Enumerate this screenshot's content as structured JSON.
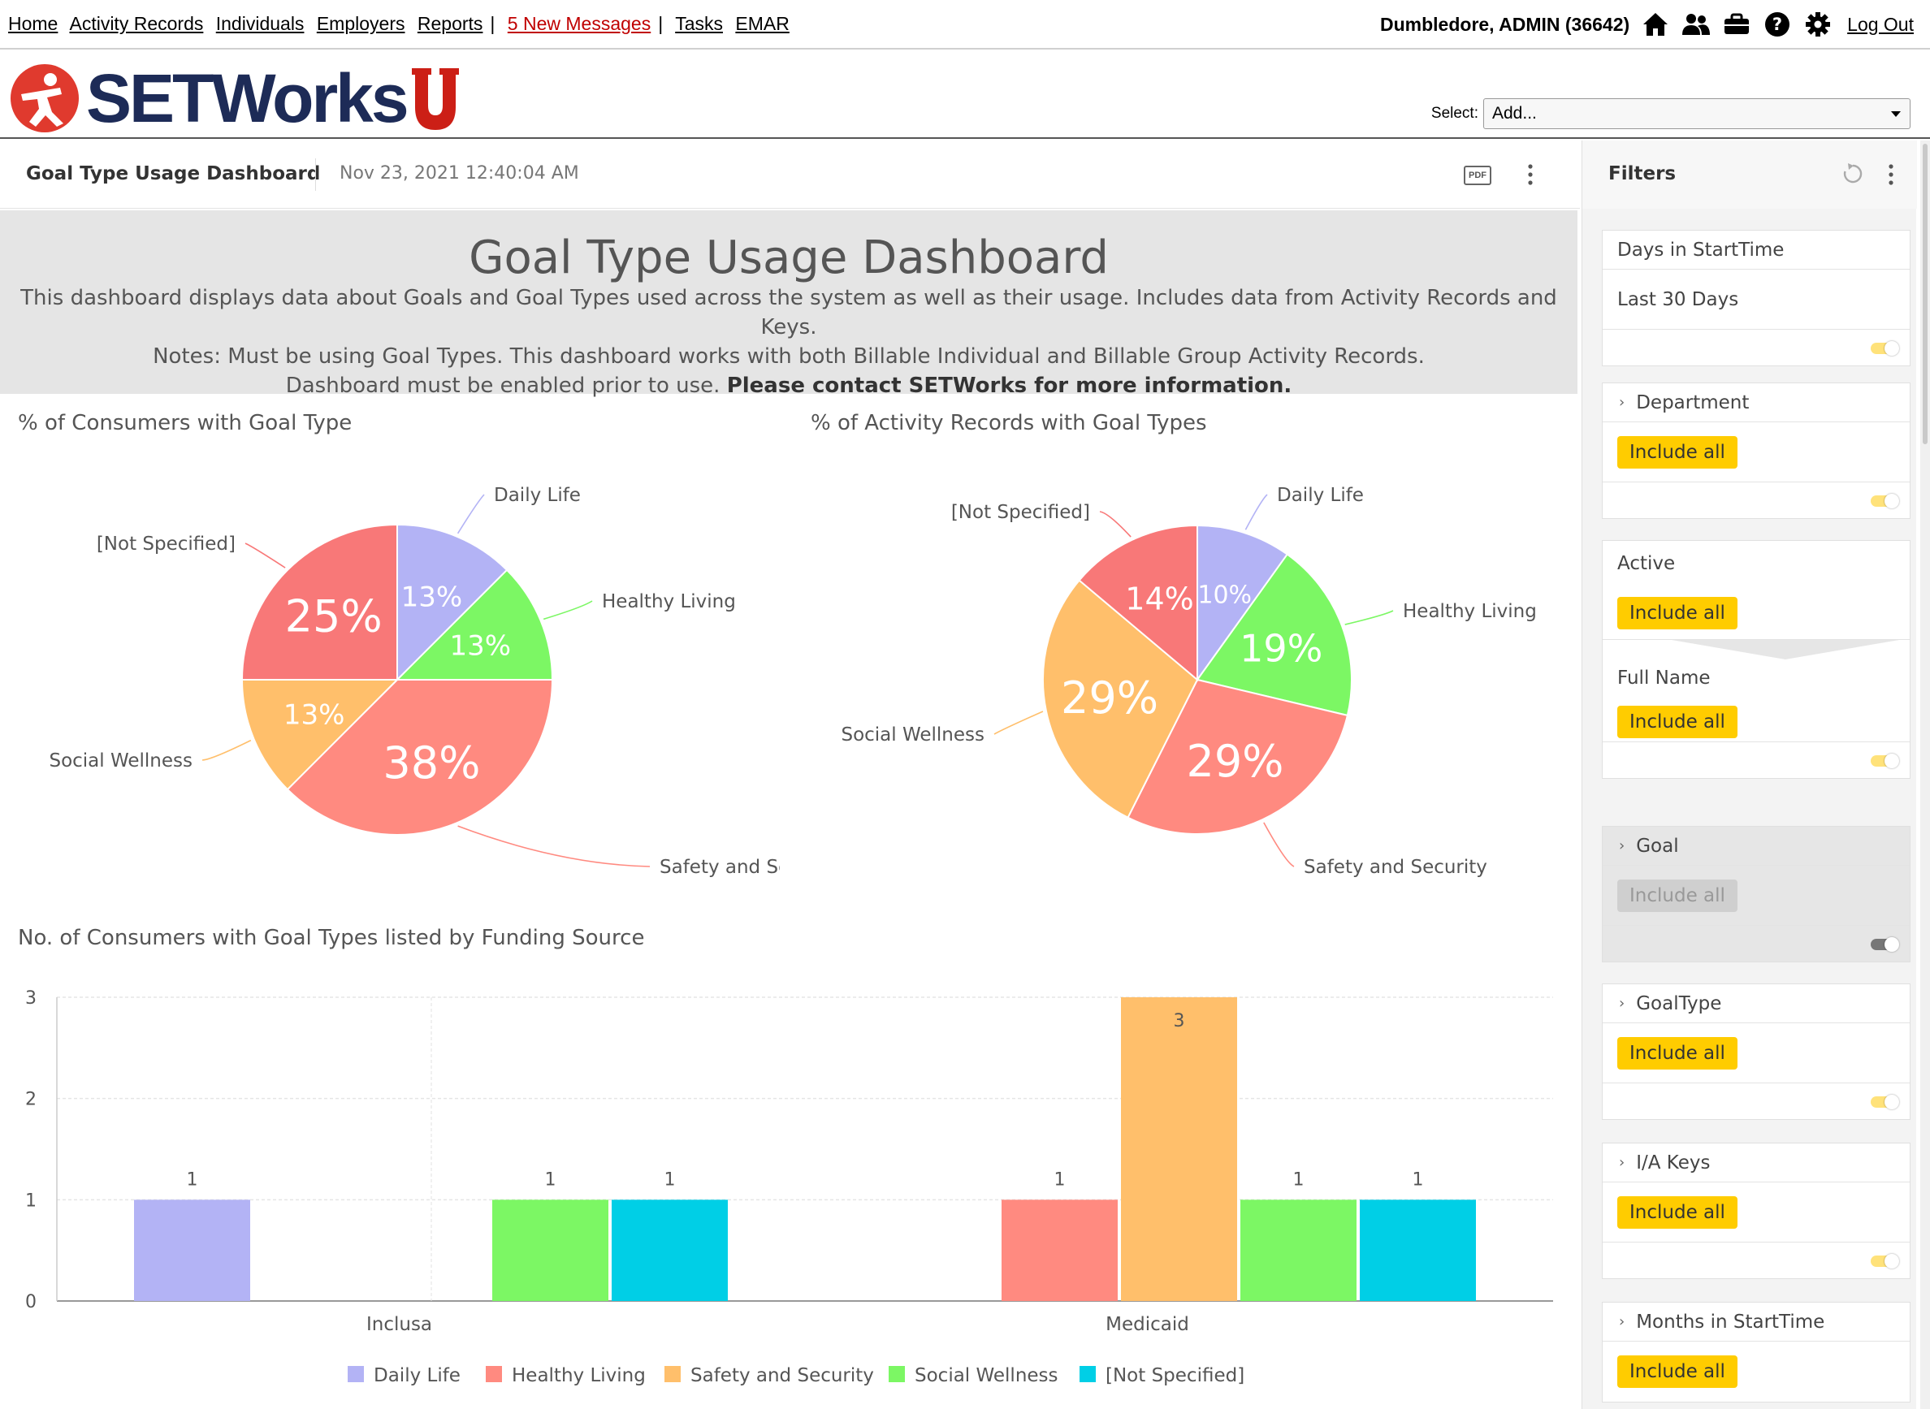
{
  "topnav": {
    "links": [
      "Home",
      "Activity Records",
      "Individuals",
      "Employers",
      "Reports"
    ],
    "messages": "5 New Messages",
    "links2": [
      "Tasks",
      "EMAR"
    ],
    "user": "Dumbledore, ADMIN  (36642)",
    "logout": "Log Out"
  },
  "logo": {
    "text": "SETWorks"
  },
  "select": {
    "label": "Select:",
    "value": "Add..."
  },
  "dashboard": {
    "title": "Goal Type Usage Dashboard",
    "timestamp": "Nov 23, 2021 12:40:04 AM",
    "pdf_label": "PDF"
  },
  "banner": {
    "heading": "Goal Type Usage Dashboard",
    "line1": "This dashboard displays data about Goals and Goal Types used across the system as well as their usage. Includes data from Activity Records and Keys.",
    "line2": "Notes: Must be using Goal Types. This dashboard works with both Billable Individual and Billable Group Activity Records.",
    "line3a": "Dashboard must be enabled prior to use.",
    "line3b": "Please contact SETWorks for more information."
  },
  "colors": {
    "daily_life": "#b3b3f5",
    "healthy_living": "#7cf764",
    "safety_security": "#ff8a80",
    "social_wellness": "#ffbf6b",
    "not_specified": "#f87878",
    "bar_healthy_living": "#ff8a80",
    "bar_safety": "#ffbf6b",
    "bar_social": "#7cf764",
    "bar_not_specified": "#00cfe6"
  },
  "chart_data": [
    {
      "type": "pie",
      "title": "% of Consumers with Goal Type",
      "slices": [
        {
          "label": "Daily Life",
          "value": 12.5,
          "display": "13%",
          "color": "#b3b3f5"
        },
        {
          "label": "Healthy Living",
          "value": 12.5,
          "display": "13%",
          "color": "#7cf764"
        },
        {
          "label": "Safety and Security",
          "value": 37.5,
          "display": "38%",
          "color": "#ff8a80"
        },
        {
          "label": "Social Wellness",
          "value": 12.5,
          "display": "13%",
          "color": "#ffbf6b"
        },
        {
          "label": "[Not Specified]",
          "value": 25,
          "display": "25%",
          "color": "#f87878"
        }
      ]
    },
    {
      "type": "pie",
      "title": "% of Activity Records with Goal Types",
      "slices": [
        {
          "label": "Daily Life",
          "value": 10,
          "display": "10%",
          "color": "#b3b3f5"
        },
        {
          "label": "Healthy Living",
          "value": 19,
          "display": "19%",
          "color": "#7cf764"
        },
        {
          "label": "Safety and Security",
          "value": 29,
          "display": "29%",
          "color": "#ff8a80"
        },
        {
          "label": "Social Wellness",
          "value": 29,
          "display": "29%",
          "color": "#ffbf6b"
        },
        {
          "label": "[Not Specified]",
          "value": 14,
          "display": "14%",
          "color": "#f87878"
        }
      ]
    },
    {
      "type": "bar",
      "title": "No. of Consumers with Goal Types listed by Funding Source",
      "categories": [
        "Inclusa",
        "Medicaid"
      ],
      "ylim": [
        0,
        3
      ],
      "yticks": [
        "0",
        "1",
        "2",
        "3"
      ],
      "series": [
        {
          "name": "Daily Life",
          "values": [
            1,
            0
          ],
          "color": "#b3b3f5"
        },
        {
          "name": "Healthy Living",
          "values": [
            0,
            1
          ],
          "color": "#ff8a80"
        },
        {
          "name": "Safety and Security",
          "values": [
            0,
            3
          ],
          "color": "#ffbf6b"
        },
        {
          "name": "Social Wellness",
          "values": [
            1,
            1
          ],
          "color": "#7cf764"
        },
        {
          "name": "[Not Specified]",
          "values": [
            1,
            1
          ],
          "color": "#00cfe6"
        }
      ]
    }
  ],
  "filters": {
    "title": "Filters",
    "include_all": "Include all",
    "days": {
      "label": "Days in StartTime",
      "value": "Last 30 Days"
    },
    "department": "Department",
    "active": "Active",
    "full_name": "Full Name",
    "goal": "Goal",
    "goaltype": "GoalType",
    "ia_keys": "I/A Keys",
    "months": "Months in StartTime"
  }
}
